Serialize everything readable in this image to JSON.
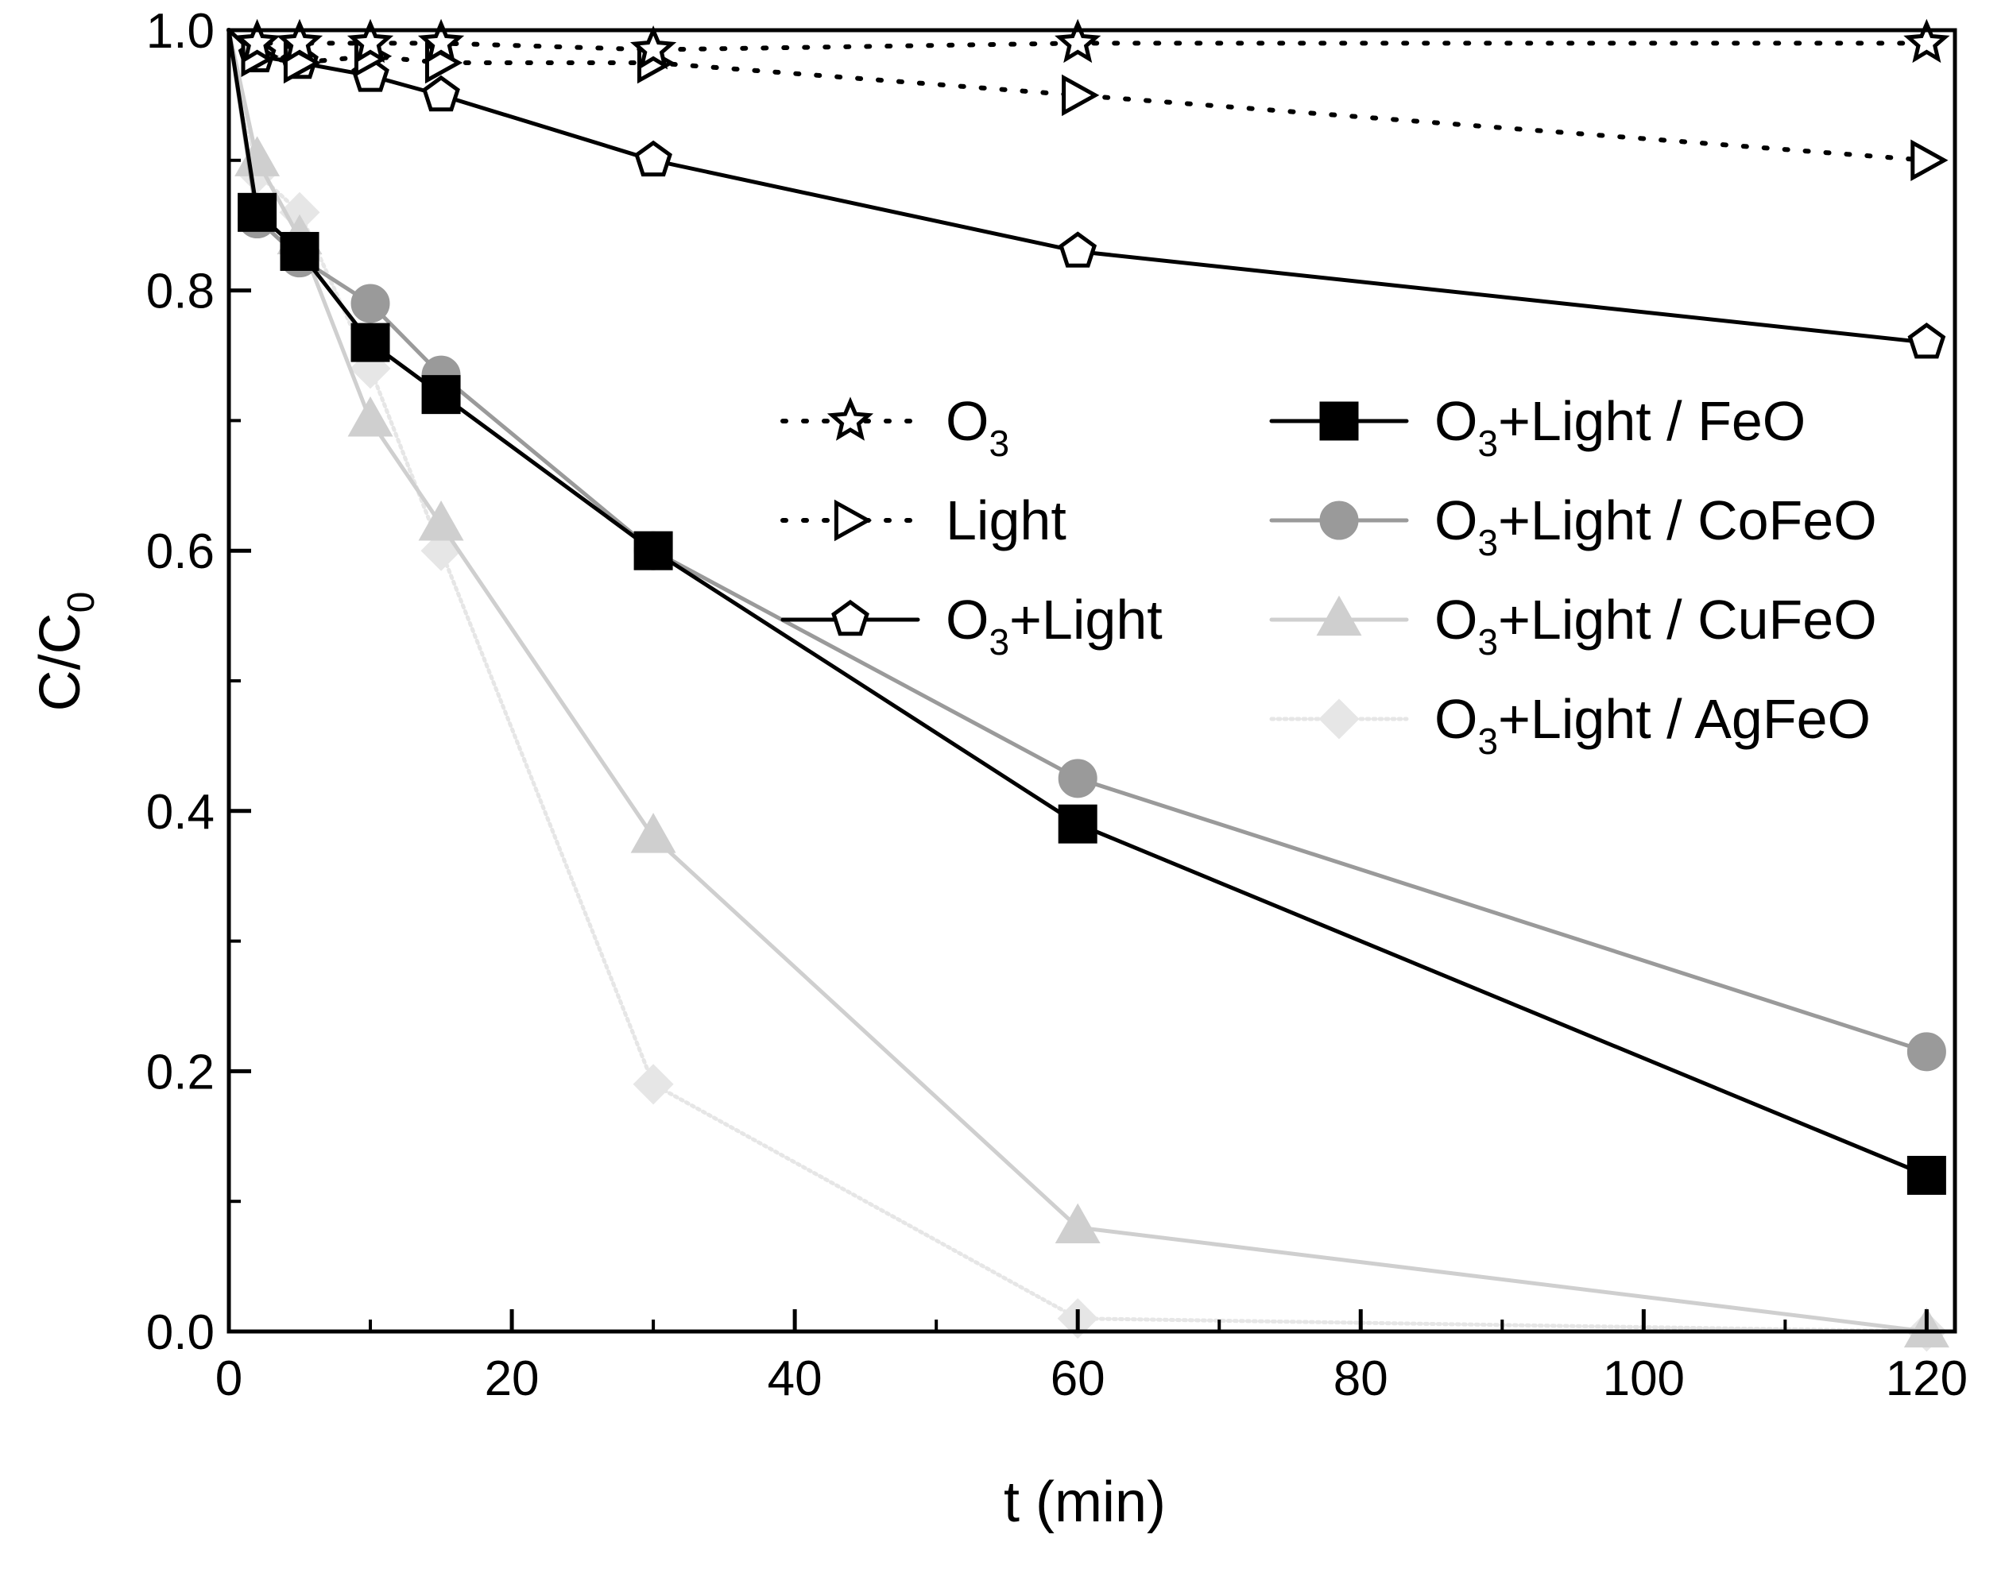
{
  "chart_data": {
    "type": "line",
    "xlabel": "t (min)",
    "ylabel": {
      "main": "C/C",
      "sub": "0"
    },
    "xlim": [
      0,
      122
    ],
    "ylim": [
      0,
      1.0
    ],
    "xticks": [
      0,
      20,
      40,
      60,
      80,
      100,
      120
    ],
    "xtick_labels": [
      "0",
      "20",
      "40",
      "60",
      "80",
      "100",
      "120"
    ],
    "yticks": [
      0.0,
      0.2,
      0.4,
      0.6,
      0.8,
      1.0
    ],
    "ytick_labels": [
      "0.0",
      "0.2",
      "0.4",
      "0.6",
      "0.8",
      "1.0"
    ],
    "x": [
      0,
      2,
      5,
      10,
      15,
      30,
      60,
      120
    ],
    "series": [
      {
        "name": "O3",
        "label": {
          "main": "O",
          "sub": "3",
          "rest": ""
        },
        "marker": "star",
        "line": "dotted",
        "color": "#000000",
        "fill": "none",
        "values": [
          1.0,
          0.99,
          0.99,
          0.99,
          0.99,
          0.985,
          0.99,
          0.99
        ]
      },
      {
        "name": "Light",
        "label": {
          "main": "Light",
          "sub": "",
          "rest": ""
        },
        "marker": "triangle-right",
        "line": "dotted",
        "color": "#000000",
        "fill": "none",
        "values": [
          1.0,
          0.98,
          0.975,
          0.98,
          0.975,
          0.975,
          0.95,
          0.9
        ]
      },
      {
        "name": "O3+Light",
        "label": {
          "main": "O",
          "sub": "3",
          "rest": "+Light"
        },
        "marker": "pentagon",
        "line": "solid",
        "color": "#000000",
        "fill": "none",
        "values": [
          1.0,
          0.98,
          0.975,
          0.965,
          0.95,
          0.9,
          0.83,
          0.76
        ]
      },
      {
        "name": "O3+Light / FeO",
        "label": {
          "main": "O",
          "sub": "3",
          "rest": "+Light / FeO"
        },
        "marker": "square",
        "line": "solid",
        "color": "#000000",
        "fill": "#000000",
        "values": [
          1.0,
          0.86,
          0.83,
          0.76,
          0.72,
          0.6,
          0.39,
          0.12
        ]
      },
      {
        "name": "O3+Light / CoFeO",
        "label": {
          "main": "O",
          "sub": "3",
          "rest": "+Light / CoFeO"
        },
        "marker": "circle",
        "line": "solid",
        "color": "#9a9a9a",
        "fill": "#9a9a9a",
        "values": [
          1.0,
          0.855,
          0.825,
          0.79,
          0.735,
          0.6,
          0.425,
          0.215
        ]
      },
      {
        "name": "O3+Light / CuFeO",
        "label": {
          "main": "O",
          "sub": "3",
          "rest": "+Light / CuFeO"
        },
        "marker": "triangle-up",
        "line": "solid",
        "color": "#cfcfcf",
        "fill": "#cfcfcf",
        "values": [
          1.0,
          0.9,
          0.84,
          0.7,
          0.62,
          0.38,
          0.08,
          0.0
        ]
      },
      {
        "name": "O3+Light / AgFeO",
        "label": {
          "main": "O",
          "sub": "3",
          "rest": "+Light / AgFeO"
        },
        "marker": "diamond",
        "line": "dotted-thick",
        "color": "#e6e6e6",
        "fill": "#e6e6e6",
        "values": [
          1.0,
          0.89,
          0.86,
          0.74,
          0.6,
          0.19,
          0.01,
          0.0
        ]
      }
    ]
  }
}
